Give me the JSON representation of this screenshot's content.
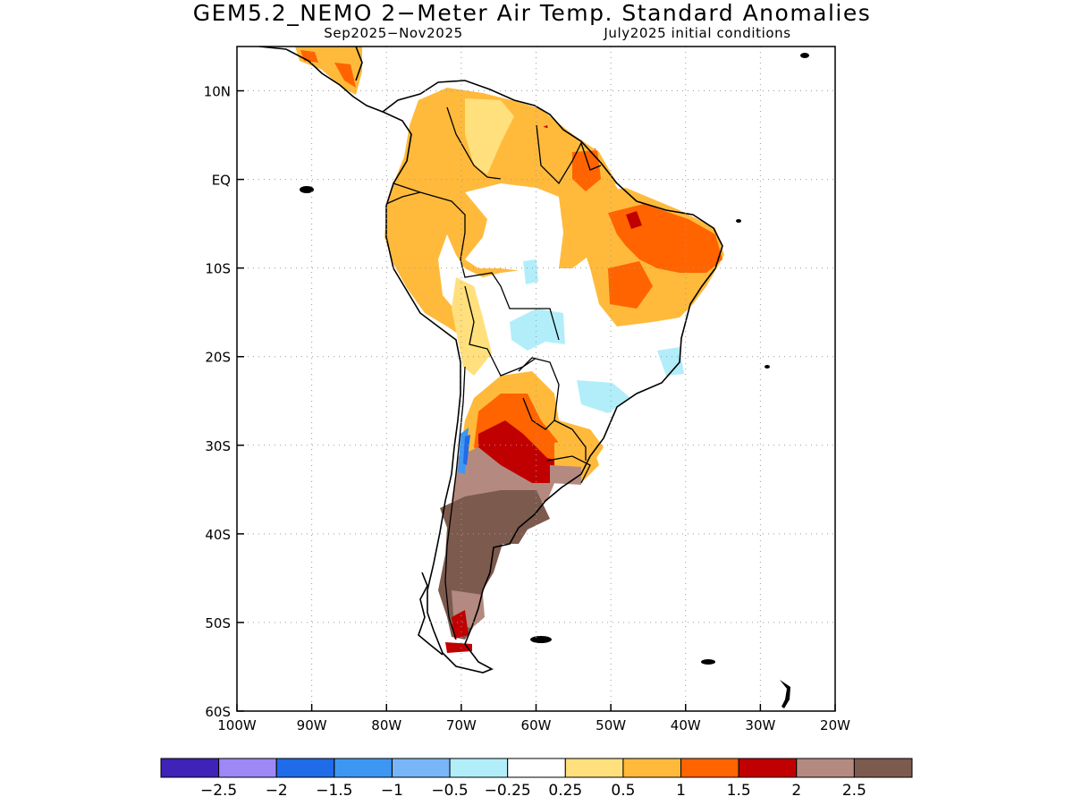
{
  "title": "GEM5.2_NEMO 2−Meter Air Temp. Standard Anomalies",
  "subtitle": {
    "period": "Sep2025−Nov2025",
    "init": "July2025 initial conditions"
  },
  "map": {
    "region": "South America",
    "lon_range": [
      -100,
      -20
    ],
    "lat_range": [
      -60,
      15
    ],
    "lon_ticks": [
      "100W",
      "90W",
      "80W",
      "70W",
      "60W",
      "50W",
      "40W",
      "30W",
      "20W"
    ],
    "lat_ticks": [
      "10N",
      "EQ",
      "10S",
      "20S",
      "30S",
      "40S",
      "50S",
      "60S"
    ],
    "gridlines": "dotted"
  },
  "colorbar": {
    "colors": [
      "#3f22b8",
      "#9d88f5",
      "#1f6be8",
      "#3d97f2",
      "#78b6f8",
      "#b2eefa",
      "#ffffff",
      "#ffe07c",
      "#ffba3c",
      "#ff6400",
      "#c00000",
      "#b48a80",
      "#7d5a4e"
    ],
    "labels": [
      "−2.5",
      "−2",
      "−1.5",
      "−1",
      "−0.5",
      "−0.25",
      "0.25",
      "0.5",
      "1",
      "1.5",
      "2",
      "2.5"
    ]
  }
}
